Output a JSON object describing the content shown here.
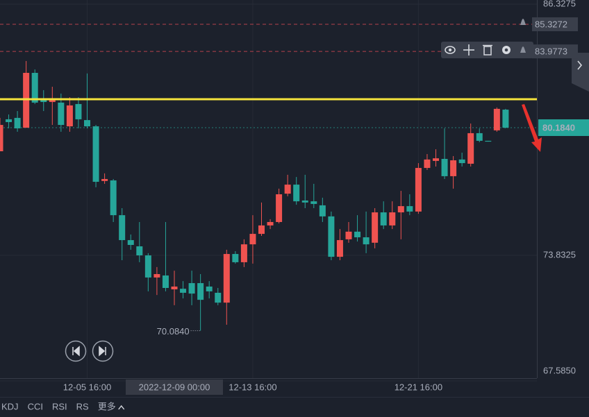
{
  "chart_data": {
    "type": "candlestick",
    "categories": [
      null,
      null,
      null,
      null,
      null,
      null,
      null,
      null,
      null,
      null,
      "12-05 16:00",
      null,
      null,
      null,
      null,
      null,
      null,
      null,
      null,
      null,
      "2022-12-09 00:00",
      null,
      null,
      null,
      null,
      null,
      null,
      null,
      null,
      "12-13 16:00",
      null,
      null,
      null,
      null,
      null,
      null,
      null,
      null,
      null,
      null,
      null,
      null,
      null,
      null,
      null,
      null,
      null,
      null,
      "12-21 16:00",
      null,
      null,
      null,
      null,
      null,
      null,
      null,
      null,
      null,
      null
    ],
    "crosshair_index": 20,
    "open": [
      79.01,
      80.6,
      80.67,
      80.18,
      82.91,
      81.6,
      81.46,
      81.43,
      80.25,
      81.36,
      80.56,
      80.25,
      77.53,
      77.56,
      75.83,
      74.59,
      74.28,
      73.83,
      72.73,
      72.83,
      72.14,
      72.17,
      72.45,
      72.45,
      72.28,
      71.97,
      71.48,
      73.9,
      73.49,
      74.38,
      74.9,
      75.32,
      75.49,
      76.9,
      77.35,
      76.56,
      76.52,
      76.32,
      75.77,
      73.76,
      74.63,
      75.01,
      74.73,
      74.46,
      75.97,
      75.32,
      75.97,
      76.28,
      76.01,
      78.18,
      78.53,
      78.63,
      77.77,
      78.6,
      78.39,
      79.91,
      79.53,
      80.05,
      81.08
    ],
    "high": [
      80.67,
      80.84,
      81.01,
      83.5,
      83.08,
      82.05,
      82.22,
      81.88,
      81.7,
      81.7,
      82.88,
      80.32,
      77.91,
      77.63,
      76.18,
      74.87,
      75.49,
      73.94,
      73.25,
      75.49,
      73.07,
      72.55,
      73.07,
      72.9,
      72.55,
      72.21,
      74.11,
      74.04,
      74.63,
      75.83,
      76.46,
      75.63,
      77.15,
      77.84,
      77.73,
      77.84,
      77.39,
      76.7,
      76.01,
      75.14,
      75.49,
      75.83,
      76.01,
      76.18,
      76.52,
      76.52,
      77.04,
      76.87,
      78.42,
      78.87,
      79.11,
      80.15,
      78.77,
      78.94,
      80.39,
      80.15,
      79.53,
      81.19,
      81.12
    ],
    "low": [
      79.01,
      80.15,
      79.98,
      80.18,
      81.36,
      81.01,
      80.32,
      79.98,
      79.98,
      80.15,
      80.15,
      77.22,
      77.39,
      75.49,
      73.59,
      74.11,
      73.49,
      72.04,
      71.86,
      72.04,
      71.35,
      71.69,
      71.35,
      70.084,
      71.69,
      71.35,
      70.38,
      73.42,
      73.25,
      73.42,
      74.8,
      75.14,
      75.42,
      76.77,
      76.35,
      76.18,
      76.18,
      75.49,
      73.59,
      73.59,
      74.46,
      74.52,
      73.94,
      74.18,
      75.14,
      75.14,
      74.63,
      75.83,
      75.9,
      78.08,
      78.25,
      77.63,
      77.15,
      78.25,
      78.25,
      79.46,
      79.49,
      79.98,
      80.15
    ],
    "close": [
      80.32,
      80.46,
      80.15,
      82.91,
      81.43,
      81.46,
      81.6,
      80.32,
      81.29,
      80.6,
      80.25,
      77.49,
      77.63,
      75.83,
      74.59,
      74.35,
      73.83,
      72.73,
      72.9,
      72.21,
      72.28,
      71.97,
      71.93,
      71.62,
      72.04,
      71.48,
      73.9,
      73.49,
      74.38,
      74.9,
      75.32,
      75.49,
      76.87,
      77.35,
      76.52,
      76.46,
      76.39,
      75.77,
      73.76,
      74.59,
      75.01,
      74.73,
      74.38,
      75.97,
      75.32,
      75.97,
      76.28,
      76.01,
      78.18,
      78.6,
      78.66,
      77.77,
      78.56,
      78.42,
      79.91,
      79.53,
      79.49,
      81.12,
      80.184
    ],
    "up_color": "#ef5350",
    "down_color": "#26a69a",
    "ylim": [
      67.585,
      86.3275
    ],
    "yticks": [
      86.3275,
      73.8325,
      {
        "value": 67.585,
        "label": "67.5850"
      }
    ],
    "ytick_colors": [
      "#ef5350",
      "#26a69a",
      "#26a69a"
    ],
    "grid": true,
    "alerts": [
      85.3272,
      83.9773
    ],
    "alert_color": "#b5414b",
    "horizontal_line": {
      "value": 81.6,
      "color": "#f5e43c"
    },
    "current_price": {
      "value": 80.184,
      "label": "80.1840"
    },
    "low_annotation": {
      "value": 70.084,
      "label": "70.0840"
    },
    "indicator_tabs": [
      "KDJ",
      "CCI",
      "RSI",
      "RS",
      "更多"
    ]
  }
}
